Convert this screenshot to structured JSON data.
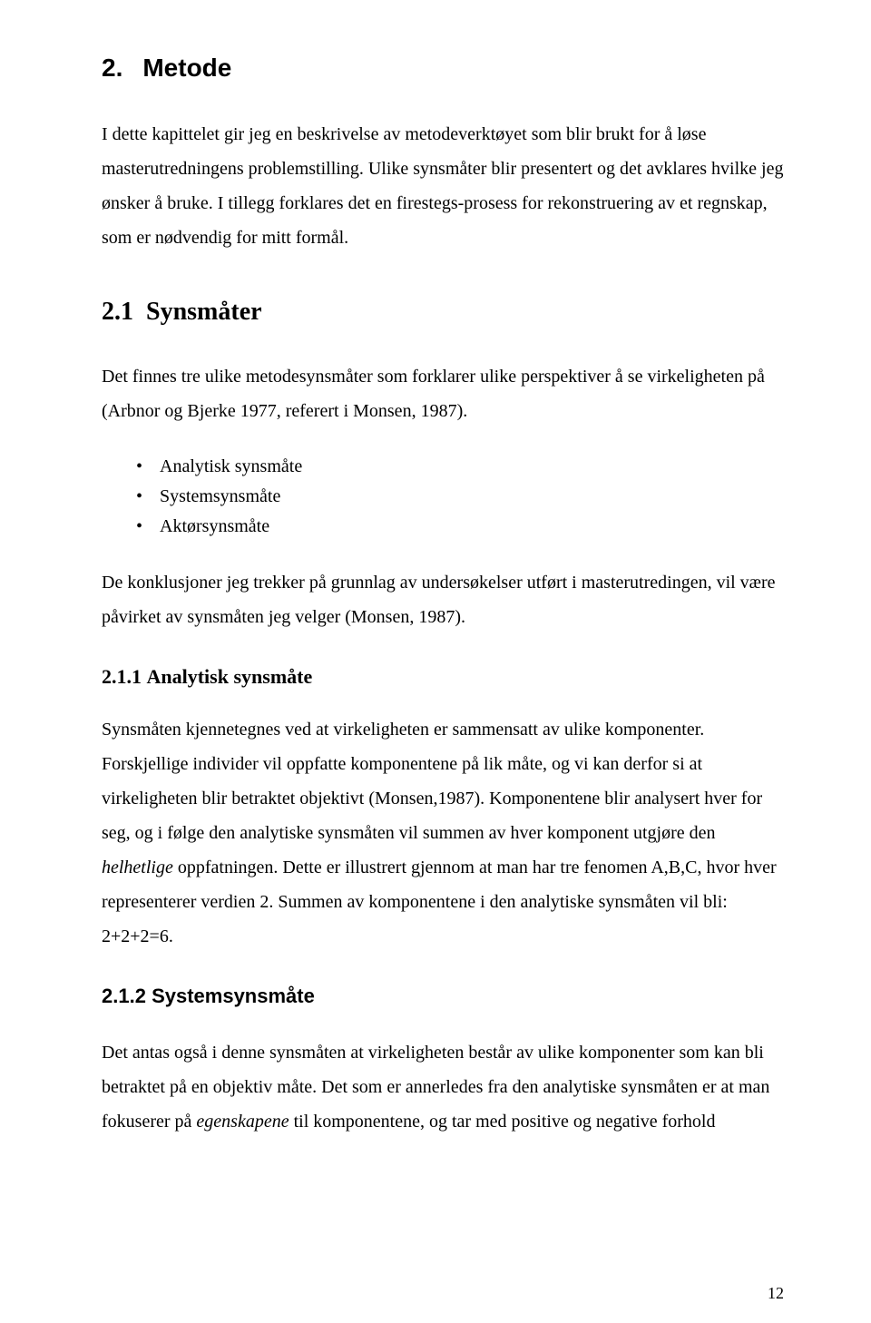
{
  "h1": {
    "num": "2.",
    "title": "Metode"
  },
  "p1": "I dette kapittelet gir jeg en beskrivelse av metodeverktøyet som blir brukt for å løse masterutredningens problemstilling. Ulike synsmåter blir presentert og det avklares hvilke jeg ønsker å bruke. I tillegg forklares det en firestegs-prosess for rekonstruering av et regnskap, som er nødvendig for mitt formål.",
  "h2": {
    "num": "2.1",
    "title": "Synsmåter"
  },
  "p2": "Det finnes tre ulike metodesynsmåter som forklarer ulike perspektiver å se virkeligheten på (Arbnor og Bjerke 1977, referert i Monsen, 1987).",
  "bullets": [
    "Analytisk synsmåte",
    "Systemsynsmåte",
    "Aktørsynsmåte"
  ],
  "p3": "De konklusjoner jeg trekker på grunnlag av undersøkelser utført i masterutredingen, vil være påvirket av synsmåten jeg velger (Monsen, 1987).",
  "h3a": {
    "num": "2.1.1",
    "title": "Analytisk synsmåte"
  },
  "p4_a": "Synsmåten kjennetegnes ved at virkeligheten er sammensatt av ulike komponenter. Forskjellige individer vil oppfatte komponentene på lik måte, og vi kan derfor si at virkeligheten blir betraktet objektivt (Monsen,1987). Komponentene blir analysert hver for seg, og i følge den analytiske synsmåten vil summen av hver komponent utgjøre den ",
  "p4_em": "helhetlige",
  "p4_b": " oppfatningen. Dette er illustrert gjennom at man har tre fenomen A,B,C, hvor hver representerer verdien 2. Summen av komponentene i den analytiske synsmåten vil bli: 2+2+2=6.",
  "h3b": {
    "num": "2.1.2",
    "title": "Systemsynsmåte"
  },
  "p5_a": "Det antas også i denne synsmåten at virkeligheten består av ulike komponenter som kan bli betraktet på en objektiv måte. Det som er annerledes fra den analytiske synsmåten er at man fokuserer på ",
  "p5_em": "egenskapene",
  "p5_b": " til komponentene, og tar med positive og negative forhold",
  "page_number": "12",
  "colors": {
    "text": "#000000",
    "background": "#ffffff"
  }
}
